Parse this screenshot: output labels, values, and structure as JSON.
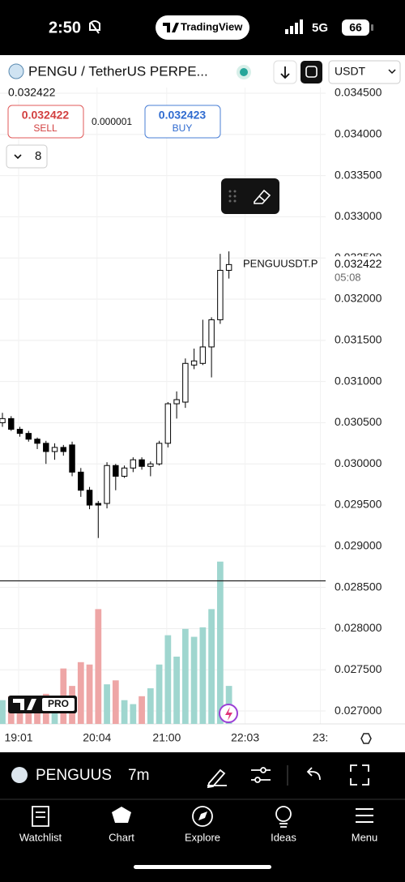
{
  "status_bar": {
    "time": "2:50",
    "app": "TradingView",
    "network": "5G",
    "battery": "66"
  },
  "toolbar": {
    "symbol": "PENGU / TetherUS PERPE...",
    "currency": "USDT"
  },
  "quote": {
    "last": "0.032422",
    "sell_price": "0.032422",
    "sell_label": "SELL",
    "spread": "0.000001",
    "buy_price": "0.032423",
    "buy_label": "BUY",
    "indicator_count": "8"
  },
  "chart_data": {
    "type": "candlestick",
    "open": [
      0.0305,
      0.03055,
      0.03042,
      0.03037,
      0.0303,
      0.03025,
      0.03015,
      0.0302,
      0.03023,
      0.0299,
      0.02968,
      0.02952,
      0.02952,
      0.02998,
      0.02985,
      0.02995,
      0.03005,
      0.02997,
      0.03,
      0.03025,
      0.03073,
      0.03075,
      0.0312,
      0.03122,
      0.03142,
      0.03175,
      0.03235
    ],
    "high": [
      0.03062,
      0.03058,
      0.03045,
      0.0304,
      0.03032,
      0.03028,
      0.03025,
      0.03023,
      0.03027,
      0.02995,
      0.02972,
      0.02955,
      0.03002,
      0.03,
      0.02998,
      0.03008,
      0.03008,
      0.03003,
      0.03028,
      0.03075,
      0.03088,
      0.03128,
      0.0314,
      0.03175,
      0.03178,
      0.03255,
      0.03258
    ],
    "low": [
      0.03045,
      0.0304,
      0.03033,
      0.03027,
      0.03018,
      0.03,
      0.03005,
      0.0301,
      0.02985,
      0.0296,
      0.02945,
      0.0291,
      0.02946,
      0.02968,
      0.02983,
      0.0299,
      0.02993,
      0.02985,
      0.02998,
      0.0302,
      0.03055,
      0.03068,
      0.03115,
      0.0312,
      0.03105,
      0.0317,
      0.03225
    ],
    "close": [
      0.03055,
      0.03042,
      0.03037,
      0.0303,
      0.03025,
      0.03015,
      0.0302,
      0.03015,
      0.0299,
      0.02968,
      0.0295,
      0.0295,
      0.02998,
      0.02985,
      0.02995,
      0.03005,
      0.02997,
      0.03,
      0.03025,
      0.03073,
      0.03078,
      0.03122,
      0.03125,
      0.03142,
      0.03175,
      0.03235,
      0.03242
    ],
    "volume": [
      30,
      35,
      30,
      32,
      30,
      38,
      35,
      70,
      48,
      78,
      75,
      145,
      50,
      55,
      30,
      25,
      35,
      45,
      75,
      112,
      85,
      120,
      110,
      122,
      145,
      205,
      48
    ],
    "up_color": "#ffffff",
    "down_color": "#000000",
    "volume_up_color": "#9fd6cf",
    "volume_down_color": "#eea6a6",
    "vlim": [
      0,
      215
    ],
    "xlim": [
      -0.28,
      37.1
    ],
    "xticks": [
      {
        "value": 1.86,
        "label": "19:01"
      },
      {
        "value": 10.86,
        "label": "20:04"
      },
      {
        "value": 18.86,
        "label": "21:00"
      },
      {
        "value": 27.86,
        "label": "22:03"
      },
      {
        "value": 36.5,
        "label": "23:"
      }
    ],
    "ylim": [
      0.026843,
      0.034569
    ],
    "yticks": [
      {
        "value": 0.0345,
        "label": "0.034500"
      },
      {
        "value": 0.034,
        "label": "0.034000"
      },
      {
        "value": 0.0335,
        "label": "0.033500"
      },
      {
        "value": 0.033,
        "label": "0.033000"
      },
      {
        "value": 0.0325,
        "label": "0.032500"
      },
      {
        "value": 0.032,
        "label": "0.032000"
      },
      {
        "value": 0.0315,
        "label": "0.031500"
      },
      {
        "value": 0.031,
        "label": "0.031000"
      },
      {
        "value": 0.0305,
        "label": "0.030500"
      },
      {
        "value": 0.03,
        "label": "0.030000"
      },
      {
        "value": 0.0295,
        "label": "0.029500"
      },
      {
        "value": 0.029,
        "label": "0.029000"
      },
      {
        "value": 0.0285,
        "label": "0.028500"
      },
      {
        "value": 0.028,
        "label": "0.028000"
      },
      {
        "value": 0.0275,
        "label": "0.027500"
      },
      {
        "value": 0.027,
        "label": "0.027000"
      }
    ],
    "grid": true,
    "hline": 0.02858,
    "last_price": 0.032422,
    "last_price_symbol": "PENGUUSDT.P",
    "countdown": "05:08",
    "logo_badge": "PRO"
  },
  "bottom_bar": {
    "symbol": "PENGUUS",
    "interval": "7m"
  },
  "tabs": [
    "Watchlist",
    "Chart",
    "Explore",
    "Ideas",
    "Menu"
  ]
}
